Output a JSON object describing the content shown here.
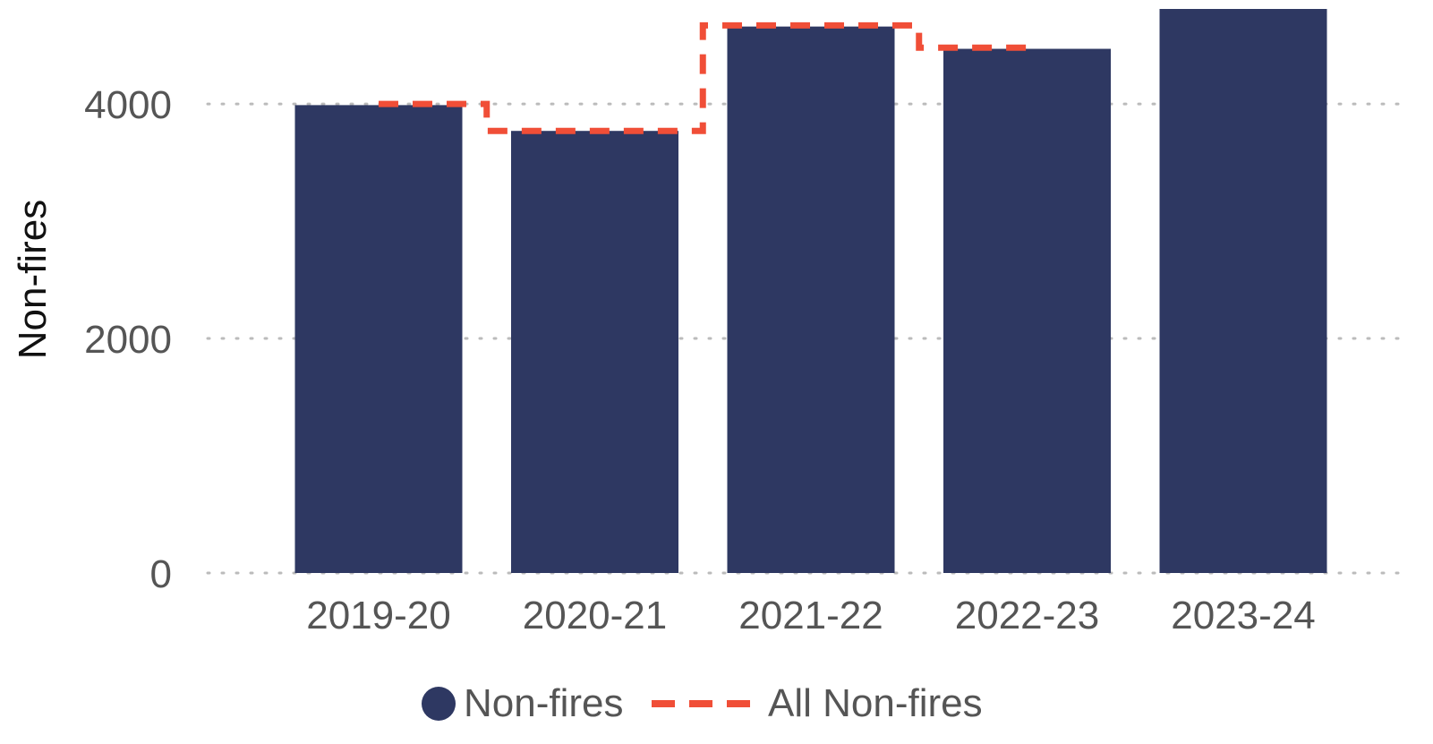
{
  "chart_data": {
    "type": "bar",
    "categories": [
      "2019-20",
      "2020-21",
      "2021-22",
      "2022-23",
      "2023-24"
    ],
    "series": [
      {
        "name": "Non-fires",
        "type": "bar",
        "values": [
          3990,
          3770,
          4660,
          4470,
          4810
        ],
        "color": "#2e3862"
      },
      {
        "name": "All Non-fires",
        "type": "step-line-dashed",
        "values": [
          4000,
          3770,
          4670,
          4480,
          null
        ],
        "color": "#f04e37"
      }
    ],
    "ylabel": "Non-fires",
    "xlabel": "",
    "yticks": [
      0,
      2000,
      4000
    ],
    "ylim": [
      0,
      4810
    ],
    "grid": "horizontal-dotted",
    "legend_position": "bottom"
  }
}
